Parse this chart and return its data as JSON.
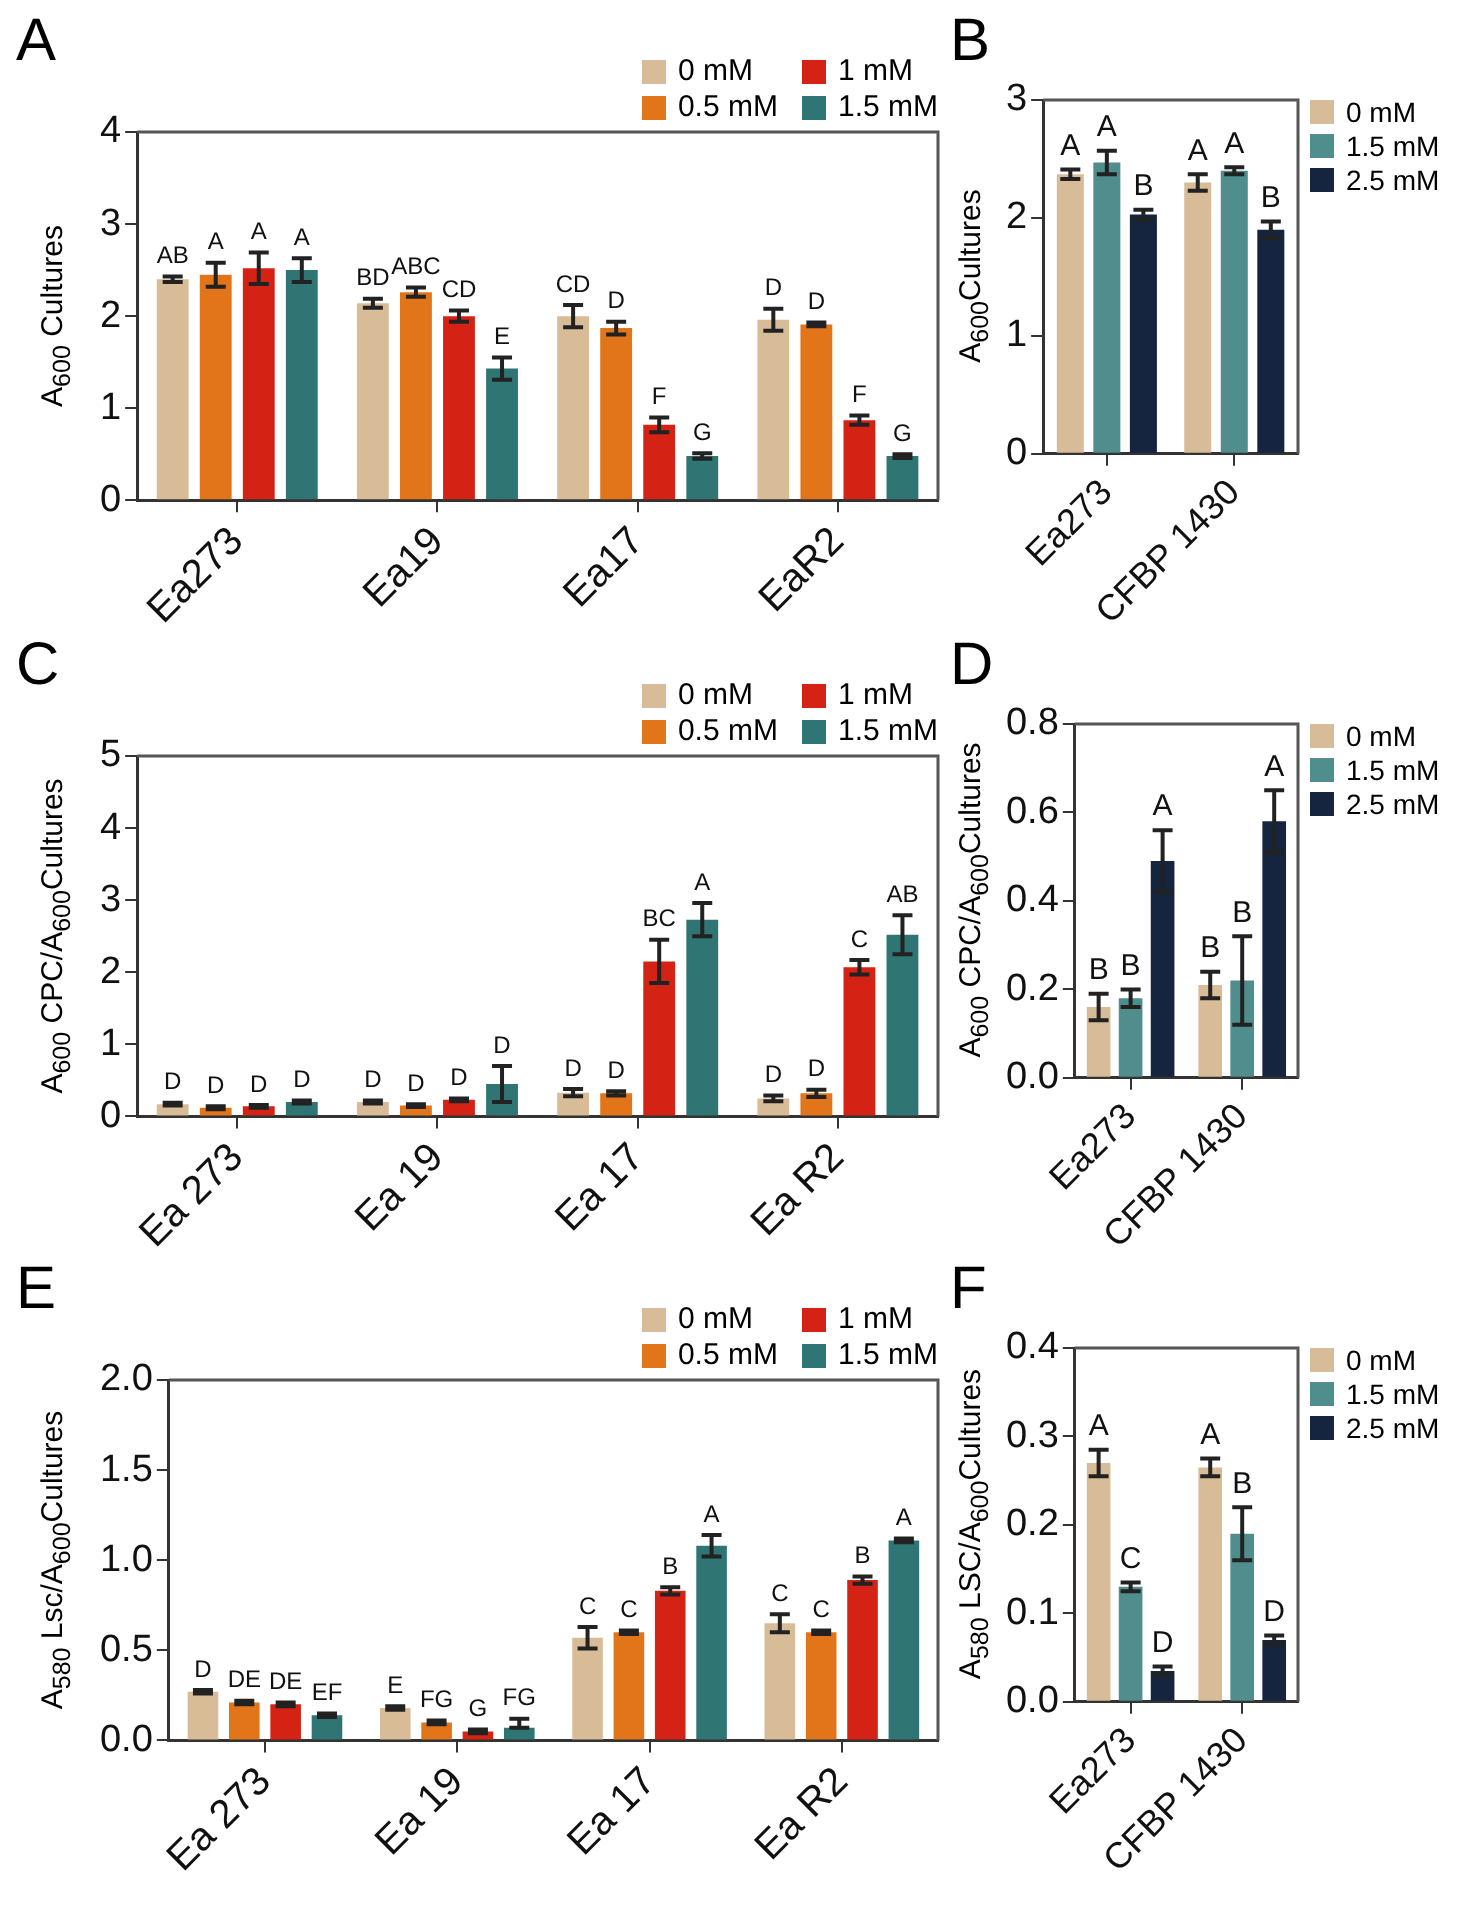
{
  "chart_data": [
    {
      "type": "bar",
      "title": "A",
      "ylabel": "A$_{600}$ Cultures",
      "categories": [
        "Ea273",
        "Ea19",
        "Ea17",
        "EaR2"
      ],
      "legend": "top right",
      "ylim": [
        0,
        4
      ],
      "yticks": [
        0,
        1,
        2,
        3,
        4
      ],
      "series": [
        {
          "name": "0 mM",
          "color": "#d8bc98",
          "values": [
            2.4,
            2.14,
            2.0,
            1.96
          ],
          "errors": [
            0.03,
            0.05,
            0.12,
            0.12
          ],
          "value_labels": [
            "AB",
            "BD",
            "CD",
            "D"
          ]
        },
        {
          "name": "0.5 mM",
          "color": "#e27419",
          "values": [
            2.45,
            2.26,
            1.87,
            1.91
          ],
          "errors": [
            0.13,
            0.05,
            0.07,
            0.02
          ],
          "value_labels": [
            "A",
            "ABC",
            "D",
            "D"
          ]
        },
        {
          "name": "1 mM",
          "color": "#d42215",
          "values": [
            2.52,
            2.0,
            0.82,
            0.87
          ],
          "errors": [
            0.17,
            0.06,
            0.08,
            0.05
          ],
          "value_labels": [
            "A",
            "CD",
            "F",
            "F"
          ]
        },
        {
          "name": "1.5 mM",
          "color": "#2f7573",
          "values": [
            2.5,
            1.43,
            0.48,
            0.48
          ],
          "errors": [
            0.13,
            0.12,
            0.03,
            0.02
          ],
          "value_labels": [
            "A",
            "E",
            "G",
            "G"
          ]
        }
      ]
    },
    {
      "type": "bar",
      "title": "B",
      "ylabel": "A$_{600}$Cultures",
      "categories": [
        "Ea273",
        "CFBP 1430"
      ],
      "legend": "right",
      "ylim": [
        0,
        3
      ],
      "yticks": [
        0,
        1,
        2,
        3
      ],
      "series": [
        {
          "name": "0 mM",
          "color": "#d8bc98",
          "values": [
            2.37,
            2.3
          ],
          "errors": [
            0.04,
            0.07
          ],
          "value_labels": [
            "A",
            "A"
          ]
        },
        {
          "name": "1.5 mM",
          "color": "#4f8e8c",
          "values": [
            2.47,
            2.4
          ],
          "errors": [
            0.1,
            0.03
          ],
          "value_labels": [
            "A",
            "A"
          ]
        },
        {
          "name": "2.5 mM",
          "color": "#15253f",
          "values": [
            2.03,
            1.9
          ],
          "errors": [
            0.04,
            0.07
          ],
          "value_labels": [
            "B",
            "B"
          ]
        }
      ]
    },
    {
      "type": "bar",
      "title": "C",
      "ylabel": "A$_{600}$ CPC/A$_{600}$Cultures",
      "categories": [
        "Ea 273",
        "Ea 19",
        "Ea 17",
        "Ea R2"
      ],
      "legend": "top right",
      "ylim": [
        0,
        5
      ],
      "yticks": [
        0,
        1,
        2,
        3,
        4,
        5
      ],
      "series": [
        {
          "name": "0 mM",
          "color": "#d8bc98",
          "values": [
            0.17,
            0.2,
            0.33,
            0.25
          ],
          "errors": [
            0.02,
            0.02,
            0.05,
            0.04
          ],
          "value_labels": [
            "D",
            "D",
            "D",
            "D"
          ]
        },
        {
          "name": "0.5 mM",
          "color": "#e27419",
          "values": [
            0.12,
            0.15,
            0.32,
            0.32
          ],
          "errors": [
            0.02,
            0.02,
            0.03,
            0.05
          ],
          "value_labels": [
            "D",
            "D",
            "D",
            "D"
          ]
        },
        {
          "name": "1 mM",
          "color": "#d42215",
          "values": [
            0.14,
            0.23,
            2.15,
            2.07
          ],
          "errors": [
            0.02,
            0.02,
            0.3,
            0.1
          ],
          "value_labels": [
            "D",
            "D",
            "BC",
            "C"
          ]
        },
        {
          "name": "1.5 mM",
          "color": "#2f7573",
          "values": [
            0.2,
            0.45,
            2.73,
            2.52
          ],
          "errors": [
            0.02,
            0.25,
            0.23,
            0.27
          ],
          "value_labels": [
            "D",
            "D",
            "A",
            "AB"
          ]
        }
      ]
    },
    {
      "type": "bar",
      "title": "D",
      "ylabel": "A$_{600}$ CPC/A$_{600}$Cultures",
      "categories": [
        "Ea273",
        "CFBP 1430"
      ],
      "legend": "right",
      "ylim": [
        0,
        0.8
      ],
      "yticks": [
        {
          "value": 0,
          "label": "0.0"
        },
        0.2,
        0.4,
        0.6,
        0.8
      ],
      "series": [
        {
          "name": "0 mM",
          "color": "#d8bc98",
          "values": [
            0.16,
            0.21
          ],
          "errors": [
            0.03,
            0.03
          ],
          "value_labels": [
            "B",
            "B"
          ]
        },
        {
          "name": "1.5 mM",
          "color": "#4f8e8c",
          "values": [
            0.18,
            0.22
          ],
          "errors": [
            0.02,
            0.1
          ],
          "value_labels": [
            "B",
            "B"
          ]
        },
        {
          "name": "2.5 mM",
          "color": "#15253f",
          "values": [
            0.49,
            0.58
          ],
          "errors": [
            0.07,
            0.07
          ],
          "value_labels": [
            "A",
            "A"
          ]
        }
      ]
    },
    {
      "type": "bar",
      "title": "E",
      "ylabel": "A$_{580}$ Lsc/A$_{600}$Cultures",
      "categories": [
        "Ea 273",
        "Ea 19",
        "Ea 17",
        "Ea R2"
      ],
      "legend": "top right",
      "ylim": [
        0,
        2
      ],
      "yticks": [
        {
          "value": 0,
          "label": "0.0"
        },
        0.5,
        {
          "value": 1,
          "label": "1.0"
        },
        1.5,
        {
          "value": 2,
          "label": "2.0"
        }
      ],
      "series": [
        {
          "name": "0 mM",
          "color": "#d8bc98",
          "values": [
            0.27,
            0.18,
            0.57,
            0.65
          ],
          "errors": [
            0.01,
            0.01,
            0.06,
            0.05
          ],
          "value_labels": [
            "D",
            "E",
            "C",
            "C"
          ]
        },
        {
          "name": "0.5 mM",
          "color": "#e27419",
          "values": [
            0.21,
            0.1,
            0.6,
            0.6
          ],
          "errors": [
            0.01,
            0.01,
            0.01,
            0.01
          ],
          "value_labels": [
            "DE",
            "FG",
            "C",
            "C"
          ]
        },
        {
          "name": "1 mM",
          "color": "#d42215",
          "values": [
            0.2,
            0.05,
            0.83,
            0.89
          ],
          "errors": [
            0.01,
            0.01,
            0.02,
            0.02
          ],
          "value_labels": [
            "DE",
            "G",
            "B",
            "B"
          ]
        },
        {
          "name": "1.5 mM",
          "color": "#2f7573",
          "values": [
            0.14,
            0.07,
            1.08,
            1.11
          ],
          "errors": [
            0.01,
            [
              0.07,
              0.12
            ],
            0.06,
            0.01
          ],
          "value_labels": [
            "EF",
            "FG",
            "A",
            "A"
          ]
        }
      ]
    },
    {
      "type": "bar",
      "title": "F",
      "ylabel": "A$_{580}$ LSC/A$_{600}$Cultures",
      "categories": [
        "Ea273",
        "CFBP 1430"
      ],
      "legend": "right",
      "ylim": [
        0,
        0.4
      ],
      "yticks": [
        {
          "value": 0,
          "label": "0.0"
        },
        0.1,
        0.2,
        0.3,
        0.4
      ],
      "series": [
        {
          "name": "0 mM",
          "color": "#d8bc98",
          "values": [
            0.27,
            0.265
          ],
          "errors": [
            0.015,
            0.01
          ],
          "value_labels": [
            "A",
            "A"
          ]
        },
        {
          "name": "1.5 mM",
          "color": "#4f8e8c",
          "values": [
            0.13,
            0.19
          ],
          "errors": [
            0.005,
            0.03
          ],
          "value_labels": [
            "C",
            "B"
          ]
        },
        {
          "name": "2.5 mM",
          "color": "#15253f",
          "values": [
            0.035,
            0.07
          ],
          "errors": [
            0.005,
            0.005
          ],
          "value_labels": [
            "D",
            "D"
          ]
        }
      ]
    }
  ]
}
